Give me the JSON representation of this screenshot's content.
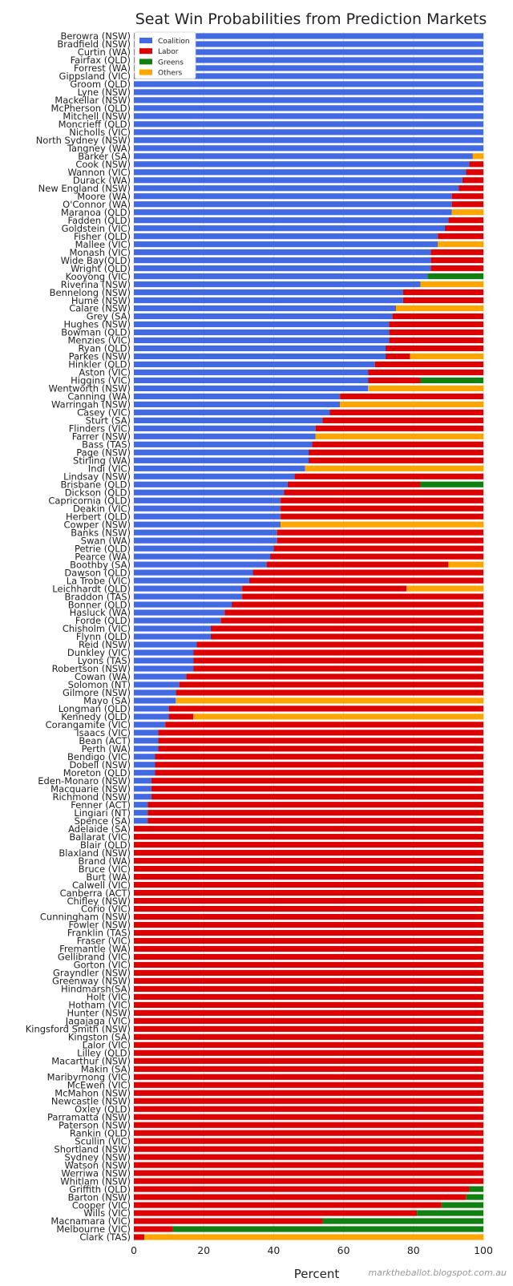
{
  "chart_data": {
    "type": "bar",
    "orientation": "horizontal",
    "stacked": true,
    "title": "Seat Win Probabilities from Prediction Markets",
    "xlabel": "Percent",
    "ylabel": "",
    "xlim": [
      0,
      100
    ],
    "xticks": [
      "0",
      "20",
      "40",
      "60",
      "80",
      "100"
    ],
    "legend": {
      "position": "top-left",
      "entries": [
        {
          "name": "Coalition",
          "color": "#4169e1"
        },
        {
          "name": "Labor",
          "color": "#dc0000"
        },
        {
          "name": "Greens",
          "color": "#108010"
        },
        {
          "name": "Others",
          "color": "#ffa500"
        }
      ]
    },
    "series_names": [
      "Coalition",
      "Labor",
      "Greens",
      "Others"
    ],
    "series_colors": [
      "#4169e1",
      "#dc0000",
      "#108010",
      "#ffa500"
    ],
    "categories": [
      "Berowra (NSW)",
      "Bradfield (NSW)",
      "Curtin (WA)",
      "Fairfax (QLD)",
      "Forrest (WA)",
      "Gippsland (VIC)",
      "Groom (QLD)",
      "Lyne (NSW)",
      "Mackellar  (NSW)",
      "McPherson (QLD)",
      "Mitchell (NSW)",
      "Moncrieff (QLD)",
      "Nicholls (VIC)",
      "North Sydney (NSW)",
      "Tangney (WA)",
      "Barker (SA)",
      "Cook (NSW)",
      "Wannon (VIC)",
      "Durack (WA)",
      "New England (NSW)",
      "Moore (WA)",
      "O'Connor (WA)",
      "Maranoa (QLD)",
      "Fadden (QLD)",
      "Goldstein (VIC)",
      "Fisher (QLD)",
      "Mallee (VIC)",
      "Monash (VIC)",
      "Wide Bay(QLD)",
      "Wright (QLD)",
      "Kooyong (VIC)",
      "Riverina (NSW)",
      "Bennelong (NSW)",
      "Hume (NSW)",
      "Calare (NSW)",
      "Grey (SA)",
      "Hughes (NSW)",
      "Bowman (QLD)",
      "Menzies (VIC)",
      "Ryan (QLD)",
      "Parkes (NSW)",
      "Hinkler (QLD)",
      "Aston (VIC)",
      "Higgins (VIC)",
      "Wentworth (NSW)",
      "Canning (WA)",
      "Warringah (NSW)",
      "Casey (VIC)",
      "Sturt  (SA)",
      "Flinders (VIC)",
      "Farrer (NSW)",
      "Bass (TAS)",
      "Page (NSW)",
      "Stirling (WA)",
      "Indi (VIC)",
      "Lindsay (NSW)",
      "Brisbane (QLD)",
      "Dickson (QLD)",
      "Capricornia (QLD)",
      "Deakin (VIC)",
      "Herbert (QLD)",
      "Cowper (NSW)",
      "Banks (NSW)",
      "Swan (WA)",
      "Petrie (QLD)",
      "Pearce (WA)",
      "Boothby (SA)",
      "Dawson (QLD)",
      "La Trobe (VIC)",
      "Leichhardt (QLD)",
      "Braddon (TAS)",
      "Bonner (QLD)",
      "Hasluck (WA)",
      "Forde (QLD)",
      "Chisholm (VIC)",
      "Flynn (QLD)",
      "Reid (NSW)",
      "Dunkley (VIC)",
      "Lyons (TAS)",
      "Robertson (NSW)",
      "Cowan (WA)",
      "Solomon (NT)",
      "Gilmore (NSW)",
      "Mayo (SA)",
      "Longman (QLD)",
      "Kennedy (QLD)",
      "Corangamite (VIC)",
      "Isaacs (VIC)",
      "Bean (ACT)",
      "Perth (WA)",
      "Bendigo (VIC)",
      "Dobell (NSW)",
      "Moreton (QLD)",
      "Eden-Monaro (NSW)",
      "Macquarie (NSW)",
      "Richmond (NSW)",
      "Fenner (ACT)",
      "Lingiari (NT)",
      "Spence (SA)",
      "Adelaide (SA)",
      "Ballarat (VIC)",
      "Blair (QLD)",
      "Blaxland (NSW)",
      "Brand (WA)",
      "Bruce (VIC)",
      "Burt (WA)",
      "Calwell (VIC)",
      "Canberra (ACT)",
      "Chifley (NSW)",
      "Corio (VIC)",
      "Cunningham (NSW)",
      "Fowler (NSW)",
      "Franklin (TAS)",
      "Fraser (VIC)",
      "Fremantle (WA)",
      "Gellibrand (VIC)",
      "Gorton (VIC)",
      "Grayndler (NSW)",
      "Greenway (NSW)",
      "Hindmarsh(SA)",
      "Holt (VIC)",
      "Hotham (VIC)",
      "Hunter (NSW)",
      "Jagajaga (VIC)",
      "Kingsford Smith (NSW)",
      "Kingston (SA)",
      "Lalor (VIC)",
      "Lilley (QLD)",
      "Macarthur (NSW)",
      "Makin (SA)",
      "Maribyrnong (VIC)",
      "McEwen (VIC)",
      "McMahon (NSW)",
      "Newcastle (NSW)",
      "Oxley (QLD)",
      "Parramatta (NSW)",
      "Paterson (NSW)",
      "Rankin (QLD)",
      "Scullin (VIC)",
      "Shortland (NSW)",
      "Sydney (NSW)",
      "Watson (NSW)",
      "Werriwa (NSW)",
      "Whitlam (NSW)",
      "Griffith (QLD)",
      "Barton (NSW)",
      "Cooper (VIC)",
      "Wills (VIC)",
      "Macnamara (VIC)",
      "Melbourne (VIC)",
      "Clark (TAS)"
    ],
    "values": [
      [
        100,
        0,
        0,
        0
      ],
      [
        100,
        0,
        0,
        0
      ],
      [
        100,
        0,
        0,
        0
      ],
      [
        100,
        0,
        0,
        0
      ],
      [
        100,
        0,
        0,
        0
      ],
      [
        100,
        0,
        0,
        0
      ],
      [
        100,
        0,
        0,
        0
      ],
      [
        100,
        0,
        0,
        0
      ],
      [
        100,
        0,
        0,
        0
      ],
      [
        100,
        0,
        0,
        0
      ],
      [
        100,
        0,
        0,
        0
      ],
      [
        100,
        0,
        0,
        0
      ],
      [
        100,
        0,
        0,
        0
      ],
      [
        100,
        0,
        0,
        0
      ],
      [
        100,
        0,
        0,
        0
      ],
      [
        97,
        0,
        0,
        3
      ],
      [
        96,
        4,
        0,
        0
      ],
      [
        95,
        5,
        0,
        0
      ],
      [
        94,
        6,
        0,
        0
      ],
      [
        93,
        7,
        0,
        0
      ],
      [
        91,
        9,
        0,
        0
      ],
      [
        91,
        9,
        0,
        0
      ],
      [
        91,
        0,
        0,
        9
      ],
      [
        90,
        10,
        0,
        0
      ],
      [
        89,
        11,
        0,
        0
      ],
      [
        87,
        13,
        0,
        0
      ],
      [
        87,
        0,
        0,
        13
      ],
      [
        85,
        15,
        0,
        0
      ],
      [
        85,
        15,
        0,
        0
      ],
      [
        85,
        15,
        0,
        0
      ],
      [
        84,
        0,
        16,
        0
      ],
      [
        82,
        0,
        0,
        18
      ],
      [
        77,
        23,
        0,
        0
      ],
      [
        77,
        23,
        0,
        0
      ],
      [
        75,
        0,
        0,
        25
      ],
      [
        74,
        26,
        0,
        0
      ],
      [
        73,
        27,
        0,
        0
      ],
      [
        73,
        27,
        0,
        0
      ],
      [
        73,
        27,
        0,
        0
      ],
      [
        72,
        28,
        0,
        0
      ],
      [
        72,
        7,
        0,
        21
      ],
      [
        69,
        31,
        0,
        0
      ],
      [
        67,
        33,
        0,
        0
      ],
      [
        67,
        15,
        18,
        0
      ],
      [
        67,
        0,
        0,
        33
      ],
      [
        59,
        41,
        0,
        0
      ],
      [
        59,
        0,
        0,
        41
      ],
      [
        56,
        44,
        0,
        0
      ],
      [
        54,
        46,
        0,
        0
      ],
      [
        52,
        48,
        0,
        0
      ],
      [
        52,
        0,
        0,
        48
      ],
      [
        51,
        49,
        0,
        0
      ],
      [
        50,
        50,
        0,
        0
      ],
      [
        50,
        50,
        0,
        0
      ],
      [
        49,
        0,
        0,
        51
      ],
      [
        46,
        54,
        0,
        0
      ],
      [
        44,
        38,
        18,
        0
      ],
      [
        43,
        57,
        0,
        0
      ],
      [
        42,
        58,
        0,
        0
      ],
      [
        42,
        58,
        0,
        0
      ],
      [
        42,
        58,
        0,
        0
      ],
      [
        42,
        0,
        0,
        58
      ],
      [
        41,
        59,
        0,
        0
      ],
      [
        41,
        59,
        0,
        0
      ],
      [
        40,
        60,
        0,
        0
      ],
      [
        39,
        61,
        0,
        0
      ],
      [
        38,
        52,
        0,
        10
      ],
      [
        34,
        66,
        0,
        0
      ],
      [
        33,
        67,
        0,
        0
      ],
      [
        31,
        47,
        0,
        22
      ],
      [
        31,
        69,
        0,
        0
      ],
      [
        28,
        72,
        0,
        0
      ],
      [
        26,
        74,
        0,
        0
      ],
      [
        25,
        75,
        0,
        0
      ],
      [
        22,
        78,
        0,
        0
      ],
      [
        22,
        78,
        0,
        0
      ],
      [
        18,
        82,
        0,
        0
      ],
      [
        17,
        83,
        0,
        0
      ],
      [
        17,
        83,
        0,
        0
      ],
      [
        17,
        83,
        0,
        0
      ],
      [
        15,
        85,
        0,
        0
      ],
      [
        13,
        87,
        0,
        0
      ],
      [
        12,
        88,
        0,
        0
      ],
      [
        12,
        0,
        0,
        88
      ],
      [
        10,
        90,
        0,
        0
      ],
      [
        10,
        7,
        0,
        83
      ],
      [
        9,
        91,
        0,
        0
      ],
      [
        7,
        93,
        0,
        0
      ],
      [
        7,
        93,
        0,
        0
      ],
      [
        7,
        93,
        0,
        0
      ],
      [
        6,
        94,
        0,
        0
      ],
      [
        6,
        94,
        0,
        0
      ],
      [
        6,
        94,
        0,
        0
      ],
      [
        5,
        95,
        0,
        0
      ],
      [
        5,
        95,
        0,
        0
      ],
      [
        5,
        95,
        0,
        0
      ],
      [
        4,
        96,
        0,
        0
      ],
      [
        4,
        96,
        0,
        0
      ],
      [
        4,
        96,
        0,
        0
      ],
      [
        0,
        100,
        0,
        0
      ],
      [
        0,
        100,
        0,
        0
      ],
      [
        0,
        100,
        0,
        0
      ],
      [
        0,
        100,
        0,
        0
      ],
      [
        0,
        100,
        0,
        0
      ],
      [
        0,
        100,
        0,
        0
      ],
      [
        0,
        100,
        0,
        0
      ],
      [
        0,
        100,
        0,
        0
      ],
      [
        0,
        100,
        0,
        0
      ],
      [
        0,
        100,
        0,
        0
      ],
      [
        0,
        100,
        0,
        0
      ],
      [
        0,
        100,
        0,
        0
      ],
      [
        0,
        100,
        0,
        0
      ],
      [
        0,
        100,
        0,
        0
      ],
      [
        0,
        100,
        0,
        0
      ],
      [
        0,
        100,
        0,
        0
      ],
      [
        0,
        100,
        0,
        0
      ],
      [
        0,
        100,
        0,
        0
      ],
      [
        0,
        100,
        0,
        0
      ],
      [
        0,
        100,
        0,
        0
      ],
      [
        0,
        100,
        0,
        0
      ],
      [
        0,
        100,
        0,
        0
      ],
      [
        0,
        100,
        0,
        0
      ],
      [
        0,
        100,
        0,
        0
      ],
      [
        0,
        100,
        0,
        0
      ],
      [
        0,
        100,
        0,
        0
      ],
      [
        0,
        100,
        0,
        0
      ],
      [
        0,
        100,
        0,
        0
      ],
      [
        0,
        100,
        0,
        0
      ],
      [
        0,
        100,
        0,
        0
      ],
      [
        0,
        100,
        0,
        0
      ],
      [
        0,
        100,
        0,
        0
      ],
      [
        0,
        100,
        0,
        0
      ],
      [
        0,
        100,
        0,
        0
      ],
      [
        0,
        100,
        0,
        0
      ],
      [
        0,
        100,
        0,
        0
      ],
      [
        0,
        100,
        0,
        0
      ],
      [
        0,
        100,
        0,
        0
      ],
      [
        0,
        100,
        0,
        0
      ],
      [
        0,
        100,
        0,
        0
      ],
      [
        0,
        100,
        0,
        0
      ],
      [
        0,
        100,
        0,
        0
      ],
      [
        0,
        100,
        0,
        0
      ],
      [
        0,
        100,
        0,
        0
      ],
      [
        0,
        100,
        0,
        0
      ],
      [
        0,
        96,
        4,
        0
      ],
      [
        0,
        95,
        5,
        0
      ],
      [
        0,
        88,
        12,
        0
      ],
      [
        0,
        81,
        19,
        0
      ],
      [
        0,
        54,
        46,
        0
      ],
      [
        0,
        11,
        89,
        0
      ],
      [
        0,
        3,
        0,
        97
      ]
    ],
    "credit": "marktheballot.blogspot.com.au"
  }
}
